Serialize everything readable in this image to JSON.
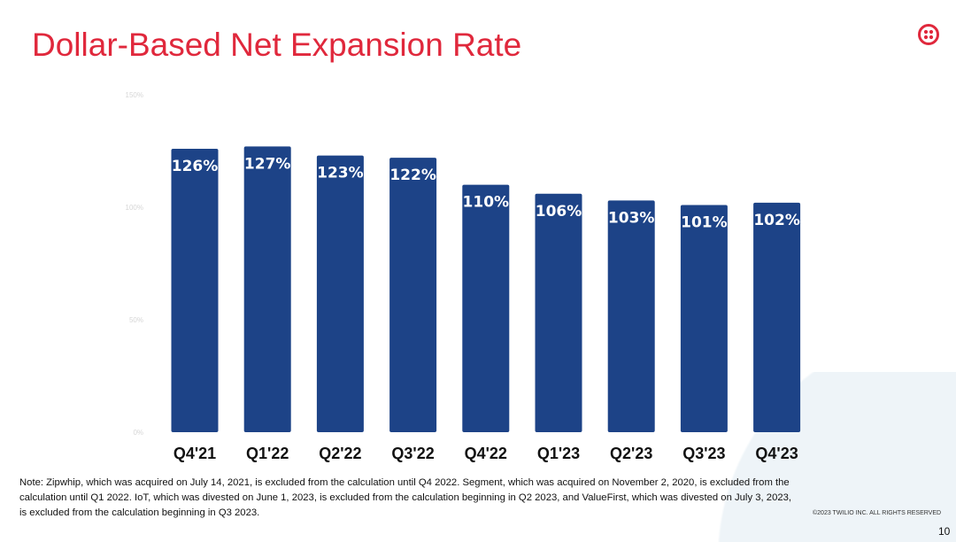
{
  "title": "Dollar-Based Net Expansion Rate",
  "logo": "twilio-logo-icon",
  "colors": {
    "title": "#e0283c",
    "bar": "#1d4387",
    "bar_label": "#ffffff"
  },
  "chart_data": {
    "type": "bar",
    "categories": [
      "Q4'21",
      "Q1'22",
      "Q2'22",
      "Q3'22",
      "Q4'22",
      "Q1'23",
      "Q2'23",
      "Q3'23",
      "Q4'23"
    ],
    "values": [
      126,
      127,
      123,
      122,
      110,
      106,
      103,
      101,
      102
    ],
    "data_labels": [
      "126%",
      "127%",
      "123%",
      "122%",
      "110%",
      "106%",
      "103%",
      "101%",
      "102%"
    ],
    "ylim": [
      0,
      150
    ],
    "yticks": [
      "150%",
      "100%",
      "50%",
      "0%"
    ],
    "ytick_values": [
      150,
      100,
      50,
      0
    ],
    "grid": false
  },
  "note": "Note: Zipwhip, which was acquired on July 14, 2021, is excluded from the calculation until Q4 2022. Segment, which was acquired on November 2, 2020, is excluded from the calculation until Q1 2022. IoT, which was divested on June 1, 2023, is excluded from the calculation beginning in Q2 2023, and ValueFirst, which was divested on July 3, 2023, is excluded from the calculation beginning in Q3 2023.",
  "copyright": "©2023 TWILIO INC. ALL RIGHTS RESERVED",
  "page_number": "10"
}
